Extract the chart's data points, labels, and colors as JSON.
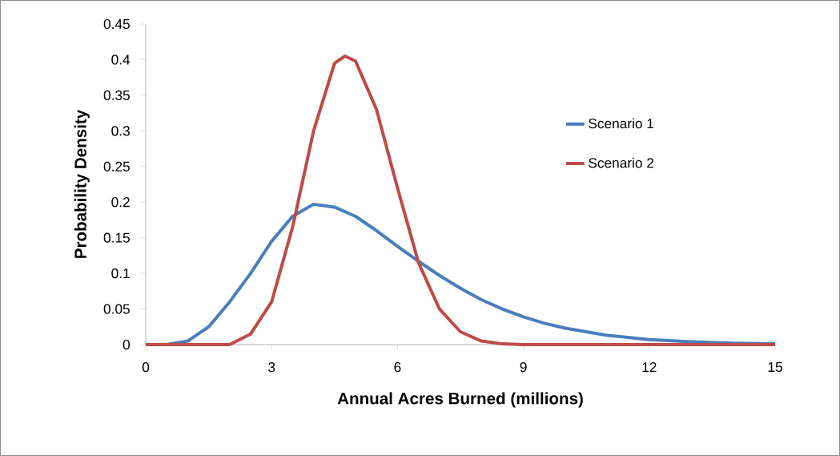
{
  "chart_data": {
    "type": "line",
    "xlabel": "Annual Acres Burned (millions)",
    "ylabel": "Probability Density",
    "xlim": [
      0,
      15
    ],
    "xticks": [
      0,
      3,
      6,
      9,
      12,
      15
    ],
    "ylim": [
      0,
      0.45
    ],
    "yticks": [
      0,
      0.05,
      0.1,
      0.15,
      0.2,
      0.25,
      0.3,
      0.35,
      0.4,
      0.45
    ],
    "grid": false,
    "legend": "right",
    "marker": "none",
    "line_style": "solid",
    "series": [
      {
        "name": "Scenario 1",
        "color": "#4a7ebb",
        "x": [
          0,
          0.5,
          1,
          1.5,
          2,
          2.5,
          3,
          3.5,
          4,
          4.5,
          5,
          5.5,
          6,
          6.5,
          7,
          7.5,
          8,
          8.5,
          9,
          9.5,
          10,
          11,
          12,
          13,
          14,
          15
        ],
        "values": [
          0,
          0,
          0.005,
          0.025,
          0.06,
          0.1,
          0.145,
          0.18,
          0.197,
          0.193,
          0.18,
          0.16,
          0.138,
          0.117,
          0.097,
          0.079,
          0.063,
          0.05,
          0.039,
          0.03,
          0.023,
          0.013,
          0.007,
          0.004,
          0.002,
          0.001
        ]
      },
      {
        "name": "Scenario 2",
        "color": "#be4b48",
        "x": [
          0,
          2,
          2.5,
          3,
          3.5,
          4,
          4.5,
          4.75,
          5,
          5.5,
          6,
          6.5,
          7,
          7.5,
          8,
          8.5,
          9,
          15
        ],
        "values": [
          0,
          0,
          0.015,
          0.06,
          0.165,
          0.3,
          0.395,
          0.405,
          0.398,
          0.33,
          0.22,
          0.115,
          0.05,
          0.018,
          0.005,
          0.001,
          0,
          0
        ]
      }
    ]
  }
}
